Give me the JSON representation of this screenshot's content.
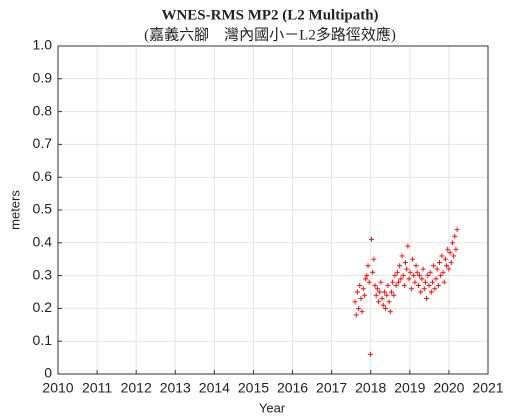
{
  "chart_data": {
    "type": "scatter",
    "title": "WNES-RMS MP2 (L2 Multipath)",
    "subtitle": "(嘉義六腳　灣內國小－L2多路徑效應)",
    "x_label": "Year",
    "y_label": "meters",
    "color": "#ff0000",
    "grid": true,
    "xlim": [
      2010,
      2021
    ],
    "xticks": [
      2010,
      2011,
      2012,
      2013,
      2014,
      2015,
      2016,
      2017,
      2018,
      2019,
      2020,
      2021
    ],
    "ylim": [
      0,
      1
    ],
    "yticks": [
      0,
      0.1,
      0.2,
      0.3,
      0.4,
      0.5,
      0.6,
      0.7,
      0.8,
      0.9,
      {
        "value": 1,
        "label": "1.0"
      }
    ],
    "x": [
      2017.6,
      2017.63,
      2017.66,
      2017.69,
      2017.72,
      2017.75,
      2017.78,
      2017.81,
      2017.84,
      2017.87,
      2017.9,
      2017.93,
      2017.96,
      2017.99,
      2018.02,
      2018.05,
      2018.08,
      2018.11,
      2018.14,
      2018.17,
      2018.2,
      2018.23,
      2018.26,
      2018.29,
      2018.32,
      2018.35,
      2018.38,
      2018.41,
      2018.44,
      2018.47,
      2018.5,
      2018.53,
      2018.56,
      2018.59,
      2018.62,
      2018.65,
      2018.68,
      2018.71,
      2018.74,
      2018.77,
      2018.8,
      2018.83,
      2018.86,
      2018.89,
      2018.92,
      2018.95,
      2018.98,
      2019.01,
      2019.04,
      2019.07,
      2019.1,
      2019.13,
      2019.16,
      2019.19,
      2019.22,
      2019.25,
      2019.28,
      2019.31,
      2019.34,
      2019.37,
      2019.4,
      2019.43,
      2019.46,
      2019.49,
      2019.52,
      2019.55,
      2019.58,
      2019.61,
      2019.64,
      2019.67,
      2019.7,
      2019.73,
      2019.76,
      2019.79,
      2019.82,
      2019.85,
      2019.88,
      2019.91,
      2019.94,
      2019.97,
      2020.0,
      2020.03,
      2020.06,
      2020.09,
      2020.12,
      2020.15,
      2020.18,
      2020.21
    ],
    "values": [
      0.22,
      0.18,
      0.25,
      0.2,
      0.27,
      0.23,
      0.19,
      0.26,
      0.24,
      0.29,
      0.3,
      0.33,
      0.28,
      0.06,
      0.41,
      0.31,
      0.35,
      0.27,
      0.24,
      0.26,
      0.22,
      0.25,
      0.28,
      0.23,
      0.21,
      0.25,
      0.2,
      0.24,
      0.27,
      0.22,
      0.19,
      0.25,
      0.28,
      0.24,
      0.3,
      0.27,
      0.31,
      0.28,
      0.33,
      0.29,
      0.36,
      0.3,
      0.27,
      0.34,
      0.32,
      0.39,
      0.29,
      0.31,
      0.26,
      0.35,
      0.3,
      0.28,
      0.33,
      0.31,
      0.27,
      0.3,
      0.25,
      0.29,
      0.32,
      0.26,
      0.28,
      0.23,
      0.3,
      0.27,
      0.31,
      0.25,
      0.28,
      0.33,
      0.26,
      0.29,
      0.32,
      0.27,
      0.34,
      0.3,
      0.36,
      0.31,
      0.28,
      0.35,
      0.33,
      0.38,
      0.32,
      0.37,
      0.34,
      0.4,
      0.36,
      0.42,
      0.38,
      0.44
    ]
  }
}
